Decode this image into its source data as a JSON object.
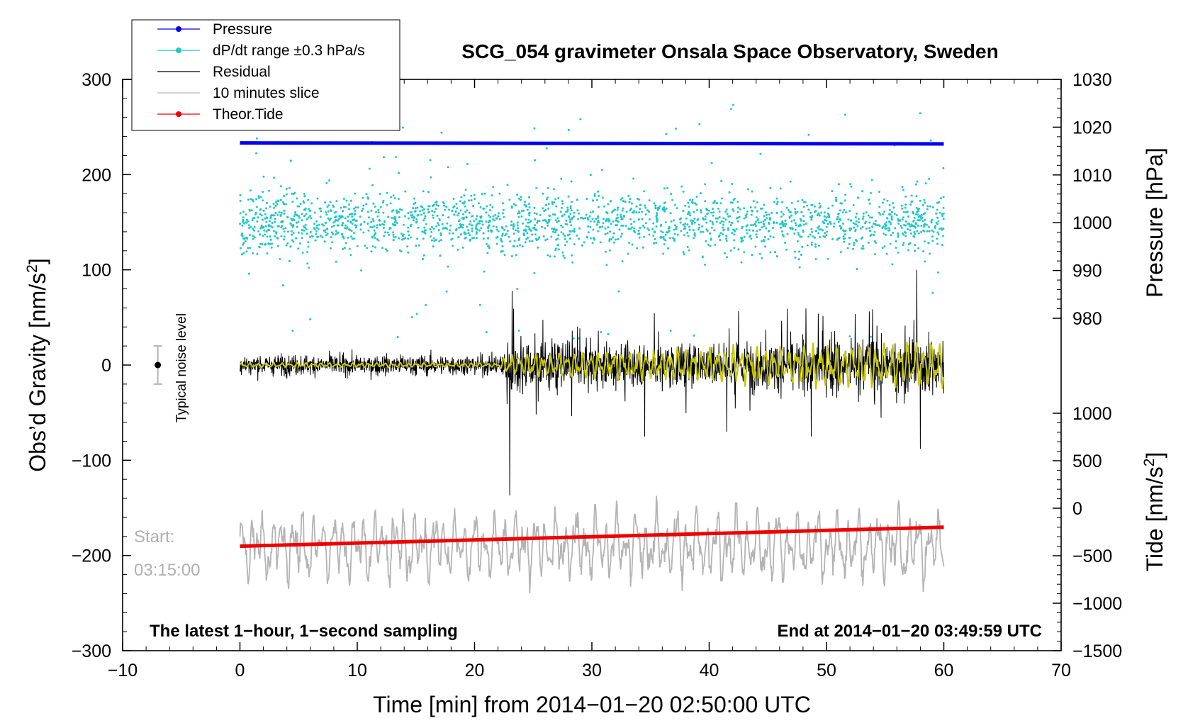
{
  "chart_data": {
    "type": "line",
    "title": "SCG_054 gravimeter Onsala Space Observatory, Sweden",
    "xlabel": "Time [min] from 2014−01−20 02:50:00 UTC",
    "xlim": [
      -10,
      70
    ],
    "xticks": [
      -10,
      0,
      10,
      20,
      30,
      40,
      50,
      60,
      70
    ],
    "xtick_labels": [
      "−10",
      "0",
      "10",
      "20",
      "30",
      "40",
      "50",
      "60",
      "70"
    ],
    "left_axis": {
      "label": "Obs’d Gravity [nm/s²]",
      "label_main": "Obs’d Gravity [nm/s",
      "label_sup": "2",
      "label_end": "]",
      "ylim": [
        -300,
        300
      ],
      "ticks": [
        -300,
        -200,
        -100,
        0,
        100,
        200,
        300
      ],
      "tick_labels": [
        "−300",
        "−200",
        "−100",
        "0",
        "100",
        "200",
        "300"
      ]
    },
    "right_axis_pressure": {
      "label": "Pressure [hPa]",
      "range": [
        980,
        1030
      ],
      "ticks": [
        980,
        990,
        1000,
        1010,
        1020,
        1030
      ],
      "tick_labels": [
        "980",
        "990",
        "1000",
        "1010",
        "1020",
        "1030"
      ]
    },
    "right_axis_tide": {
      "label": "Tide [nm/s²]",
      "label_main": "Tide [nm/s",
      "label_sup": "2",
      "label_end": "]",
      "range": [
        -1500,
        1000
      ],
      "ticks": [
        -1500,
        -1000,
        -500,
        0,
        500,
        1000
      ],
      "tick_labels": [
        "−1500",
        "−1000",
        "−500",
        "0",
        "500",
        "1000"
      ]
    },
    "legend": {
      "position": "top-left",
      "entries": [
        {
          "label": "Pressure",
          "color": "#0000ee"
        },
        {
          "label": "dP/dt range ±0.3 hPa/s",
          "color": "#20c8c8"
        },
        {
          "label": "Residual",
          "color": "#000000"
        },
        {
          "label": "10 minutes slice",
          "color": "#b4b4b4"
        },
        {
          "label": "Theor.Tide",
          "color": "#ee0000"
        }
      ]
    },
    "series": [
      {
        "name": "Pressure",
        "axis": "pressure",
        "color": "#0000ee",
        "x": [
          0,
          60
        ],
        "values": [
          1016.7,
          1016.5
        ]
      },
      {
        "name": "dP/dt range ±0.3 hPa/s",
        "axis": "left",
        "color": "#20c8c8",
        "x_range": [
          0,
          60
        ],
        "center": 150,
        "spread": 35,
        "approx_points": 2400
      },
      {
        "name": "Residual",
        "axis": "left",
        "color": "#000000",
        "x_range": [
          0,
          60
        ],
        "amplitude_envelope": [
          [
            0,
            15
          ],
          [
            22,
            15
          ],
          [
            23,
            40
          ],
          [
            30,
            30
          ],
          [
            40,
            32
          ],
          [
            50,
            38
          ],
          [
            60,
            40
          ]
        ],
        "spikes": [
          [
            23,
            -137
          ],
          [
            23.2,
            78
          ],
          [
            34.5,
            -75
          ],
          [
            41.5,
            -70
          ],
          [
            48.7,
            -75
          ],
          [
            57.7,
            100
          ],
          [
            58,
            -88
          ]
        ]
      },
      {
        "name": "Residual (smoothed)",
        "axis": "left",
        "color": "#c8c800",
        "x_range": [
          0,
          60
        ],
        "amplitude_envelope": [
          [
            0,
            2
          ],
          [
            22,
            2
          ],
          [
            23,
            10
          ],
          [
            60,
            22
          ]
        ]
      },
      {
        "name": "10 minutes slice",
        "axis": "left",
        "color": "#b4b4b4",
        "x_range": [
          0,
          60
        ],
        "center": -190,
        "amplitude": 35
      },
      {
        "name": "Theor.Tide",
        "axis": "tide",
        "color": "#ee0000",
        "x": [
          0,
          60
        ],
        "values": [
          -400,
          -200
        ]
      }
    ],
    "noise_level": {
      "label": "Typical noise level",
      "x": -7,
      "center": 0,
      "half_range": 20
    },
    "annotations": {
      "start_line1": "Start:",
      "start_line2": "03:15:00",
      "bottom_left": "The latest 1−hour, 1−second sampling",
      "bottom_right": "End at 2014−01−20 03:49:59 UTC"
    }
  }
}
